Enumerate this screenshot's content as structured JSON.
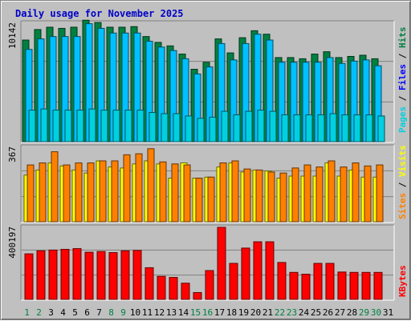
{
  "title": "Daily usage for November 2025",
  "colors": {
    "background": "#c0c0c0",
    "hits": "#008040",
    "files": "#00c0ff",
    "pages": "#00d0e0",
    "visits": "#ffff00",
    "sites": "#ff8000",
    "kbytes": "#ff0000",
    "weekend": "#008040",
    "weekday": "#000000"
  },
  "right_labels": {
    "top": [
      "Pages",
      "Files",
      "Hits"
    ],
    "middle": [
      "Sites",
      "Visits"
    ],
    "bottom": [
      "KBytes"
    ],
    "separator": " / "
  },
  "chart_data": [
    {
      "type": "bar",
      "panel": "hits-files-pages",
      "ymax_label": "10142",
      "ylim": [
        0,
        10142
      ],
      "categories": [
        "1",
        "2",
        "3",
        "4",
        "5",
        "6",
        "7",
        "8",
        "9",
        "10",
        "11",
        "12",
        "13",
        "14",
        "15",
        "16",
        "17",
        "18",
        "19",
        "20",
        "21",
        "22",
        "23",
        "24",
        "25",
        "26",
        "27",
        "28",
        "29",
        "30",
        "31"
      ],
      "series": [
        {
          "name": "Hits",
          "values": [
            8700,
            9600,
            9800,
            9700,
            9800,
            10400,
            10200,
            9800,
            9800,
            9850,
            9000,
            8500,
            8200,
            7500,
            6200,
            6800,
            8800,
            7600,
            8900,
            9500,
            9200,
            7200,
            7200,
            7100,
            7500,
            7700,
            7200,
            7300,
            7400,
            7100,
            null
          ]
        },
        {
          "name": "Files",
          "values": [
            7900,
            8800,
            9000,
            9000,
            9000,
            10100,
            9700,
            9300,
            9300,
            9300,
            8600,
            8100,
            7800,
            7100,
            5800,
            6400,
            8400,
            7000,
            8400,
            9200,
            8700,
            6800,
            6800,
            6800,
            6800,
            7200,
            6700,
            6900,
            7000,
            6500,
            null
          ]
        },
        {
          "name": "Pages",
          "values": [
            2700,
            2800,
            2700,
            2700,
            2700,
            2800,
            2700,
            2700,
            2700,
            2700,
            2500,
            2400,
            2400,
            2200,
            2000,
            2100,
            2600,
            2300,
            2600,
            2700,
            2600,
            2300,
            2300,
            2300,
            2300,
            2400,
            2300,
            2300,
            2300,
            2200,
            null
          ]
        }
      ]
    },
    {
      "type": "bar",
      "panel": "visits-sites",
      "ymax_label": "367",
      "ylim": [
        0,
        367
      ],
      "categories": [
        "1",
        "2",
        "3",
        "4",
        "5",
        "6",
        "7",
        "8",
        "9",
        "10",
        "11",
        "12",
        "13",
        "14",
        "15",
        "16",
        "17",
        "18",
        "19",
        "20",
        "21",
        "22",
        "23",
        "24",
        "25",
        "26",
        "27",
        "28",
        "29",
        "30",
        "31"
      ],
      "series": [
        {
          "name": "Visits",
          "values": [
            230,
            255,
            290,
            275,
            255,
            240,
            300,
            270,
            265,
            285,
            300,
            285,
            215,
            290,
            215,
            220,
            270,
            290,
            245,
            255,
            250,
            215,
            225,
            225,
            225,
            290,
            225,
            255,
            220,
            220,
            null
          ]
        },
        {
          "name": "Sites",
          "values": [
            280,
            290,
            345,
            280,
            290,
            290,
            300,
            300,
            330,
            335,
            360,
            295,
            285,
            280,
            215,
            220,
            290,
            300,
            260,
            255,
            245,
            240,
            265,
            280,
            270,
            300,
            270,
            290,
            275,
            280,
            null
          ]
        }
      ]
    },
    {
      "type": "bar",
      "panel": "kbytes",
      "ymax_label": "400197",
      "ylim": [
        0,
        400197
      ],
      "categories": [
        "1",
        "2",
        "3",
        "4",
        "5",
        "6",
        "7",
        "8",
        "9",
        "10",
        "11",
        "12",
        "13",
        "14",
        "15",
        "16",
        "17",
        "18",
        "19",
        "20",
        "21",
        "22",
        "23",
        "24",
        "25",
        "26",
        "27",
        "28",
        "29",
        "30",
        "31"
      ],
      "series": [
        {
          "name": "KBytes",
          "values": [
            253000,
            270000,
            274000,
            278000,
            282000,
            262000,
            266000,
            260000,
            270000,
            272000,
            176000,
            128000,
            122000,
            90000,
            38000,
            160000,
            400197,
            200000,
            285000,
            320000,
            320000,
            205000,
            150000,
            140000,
            200000,
            200000,
            152000,
            150000,
            150000,
            150000,
            null
          ]
        }
      ]
    }
  ],
  "weekend_days": [
    1,
    2,
    8,
    9,
    15,
    16,
    22,
    23,
    29,
    30
  ]
}
